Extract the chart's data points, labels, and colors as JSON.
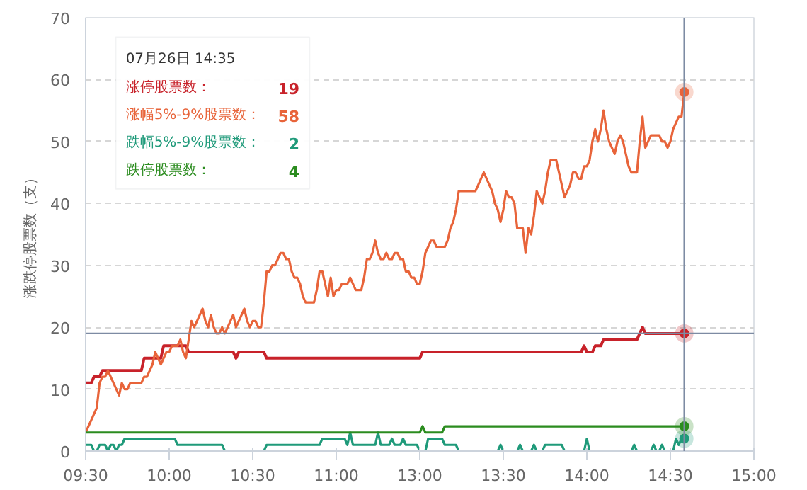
{
  "chart_data": {
    "type": "line",
    "ylabel": "涨跌停股票数（支）",
    "ylim": [
      0,
      70
    ],
    "categories": [
      "09:30",
      null,
      null,
      null,
      null,
      null,
      null,
      null,
      null,
      null,
      null,
      null,
      null,
      null,
      null,
      null,
      null,
      null,
      null,
      null,
      null,
      null,
      null,
      null,
      null,
      null,
      null,
      null,
      null,
      null,
      "10:00",
      null,
      null,
      null,
      null,
      null,
      null,
      null,
      null,
      null,
      null,
      null,
      null,
      null,
      null,
      null,
      null,
      null,
      null,
      null,
      null,
      null,
      null,
      null,
      null,
      null,
      null,
      null,
      null,
      null,
      "10:30",
      null,
      null,
      null,
      null,
      null,
      null,
      null,
      null,
      null,
      null,
      null,
      null,
      null,
      null,
      null,
      null,
      null,
      null,
      null,
      null,
      null,
      null,
      null,
      null,
      null,
      null,
      null,
      null,
      null,
      "11:00",
      null,
      null,
      null,
      null,
      null,
      null,
      null,
      null,
      null,
      null,
      null,
      null,
      null,
      null,
      null,
      null,
      null,
      null,
      null,
      null,
      null,
      null,
      null,
      null,
      null,
      null,
      null,
      null,
      null,
      "13:00",
      null,
      null,
      null,
      null,
      null,
      null,
      null,
      null,
      null,
      null,
      null,
      null,
      null,
      null,
      null,
      null,
      null,
      null,
      null,
      null,
      null,
      null,
      null,
      null,
      null,
      null,
      null,
      null,
      null,
      "13:30",
      null,
      null,
      null,
      null,
      null,
      null,
      null,
      null,
      null,
      null,
      null,
      null,
      null,
      null,
      null,
      null,
      null,
      null,
      null,
      null,
      null,
      null,
      null,
      null,
      null,
      null,
      null,
      null,
      null,
      "14:00",
      null,
      null,
      null,
      null,
      null,
      null,
      null,
      null,
      null,
      null,
      null,
      null,
      null,
      null,
      null,
      null,
      null,
      null,
      null,
      null,
      null,
      null,
      null,
      null,
      null,
      null,
      null,
      null,
      null,
      "14:30",
      null,
      null,
      null,
      null,
      null,
      null,
      null,
      null,
      null,
      null,
      null,
      null,
      null,
      null,
      null,
      null,
      null,
      null,
      null,
      null,
      null,
      null,
      null,
      null,
      null,
      null,
      null,
      null,
      null,
      "15:00"
    ],
    "yticks": [
      0,
      10,
      20,
      30,
      40,
      50,
      60,
      70
    ],
    "grid": "y",
    "legend": "top left",
    "line_style": "solid",
    "annotations": [
      "07月26日 14:35",
      "19",
      "58",
      "2",
      "4"
    ],
    "ref_lines": [
      {
        "axis": "y",
        "value": 19,
        "color": "#7d8ba3"
      }
    ],
    "series": [
      {
        "name": "涨停股票数：",
        "color": "#c8222a",
        "values": [
          11,
          11,
          11,
          12,
          12,
          12,
          13,
          13,
          13,
          13,
          13,
          13,
          13,
          13,
          13,
          13,
          13,
          13,
          13,
          13,
          13,
          15,
          15,
          15,
          15,
          15,
          15,
          15,
          17,
          17,
          17,
          17,
          17,
          17,
          17,
          17,
          17,
          16,
          16,
          16,
          16,
          16,
          16,
          16,
          16,
          16,
          16,
          16,
          16,
          16,
          16,
          16,
          16,
          16,
          15,
          16,
          16,
          16,
          16,
          16,
          16,
          16,
          16,
          16,
          16,
          15,
          15,
          15,
          15,
          15,
          15,
          15,
          15,
          15,
          15,
          15,
          15,
          15,
          15,
          15,
          15,
          15,
          15,
          15,
          15,
          15,
          15,
          15,
          15,
          15,
          15,
          15,
          15,
          15,
          15,
          15,
          15,
          15,
          15,
          15,
          15,
          15,
          15,
          15,
          15,
          15,
          15,
          15,
          15,
          15,
          15,
          15,
          15,
          15,
          15,
          15,
          15,
          15,
          15,
          15,
          15,
          16,
          16,
          16,
          16,
          16,
          16,
          16,
          16,
          16,
          16,
          16,
          16,
          16,
          16,
          16,
          16,
          16,
          16,
          16,
          16,
          16,
          16,
          16,
          16,
          16,
          16,
          16,
          16,
          16,
          16,
          16,
          16,
          16,
          16,
          16,
          16,
          16,
          16,
          16,
          16,
          16,
          16,
          16,
          16,
          16,
          16,
          16,
          16,
          16,
          16,
          16,
          16,
          16,
          16,
          16,
          16,
          16,
          16,
          17,
          16,
          16,
          16,
          17,
          17,
          17,
          18,
          18,
          18,
          18,
          18,
          18,
          18,
          18,
          18,
          18,
          18,
          18,
          18,
          19,
          20,
          19,
          19,
          19,
          19,
          19,
          19,
          19,
          19,
          19,
          19,
          19,
          19,
          19,
          19,
          19,
          null,
          null,
          null,
          null,
          null,
          null,
          null,
          null,
          null,
          null,
          null,
          null,
          null,
          null,
          null,
          null,
          null,
          null,
          null,
          null,
          null,
          null,
          null,
          null,
          null
        ]
      },
      {
        "name": "涨幅5%-9%股票数：",
        "color": "#e8643a",
        "values": [
          3,
          4,
          5,
          6,
          7,
          11,
          12,
          12,
          13,
          12,
          11,
          10,
          9,
          11,
          10,
          10,
          11,
          11,
          11,
          11,
          11,
          12,
          12,
          13,
          14,
          16,
          15,
          14,
          15,
          16,
          16,
          17,
          17,
          17,
          18,
          16,
          15,
          18,
          21,
          20,
          21,
          22,
          23,
          21,
          20,
          22,
          20,
          19,
          19,
          20,
          19,
          20,
          21,
          22,
          20,
          21,
          22,
          23,
          21,
          20,
          21,
          21,
          20,
          20,
          24,
          29,
          29,
          30,
          30,
          31,
          32,
          32,
          31,
          31,
          29,
          28,
          28,
          27,
          25,
          24,
          24,
          24,
          24,
          26,
          29,
          29,
          27,
          25,
          28,
          25,
          26,
          26,
          27,
          27,
          27,
          28,
          27,
          26,
          26,
          26,
          28,
          31,
          31,
          32,
          34,
          32,
          31,
          31,
          32,
          31,
          31,
          32,
          32,
          31,
          31,
          29,
          29,
          28,
          28,
          27,
          27,
          29,
          32,
          33,
          34,
          34,
          33,
          33,
          33,
          33,
          34,
          36,
          37,
          39,
          42,
          42,
          42,
          42,
          42,
          42,
          42,
          43,
          44,
          45,
          44,
          43,
          42,
          40,
          39,
          37,
          39,
          42,
          41,
          41,
          40,
          36,
          36,
          36,
          32,
          36,
          35,
          38,
          42,
          41,
          40,
          42,
          45,
          47,
          47,
          47,
          45,
          43,
          41,
          42,
          43,
          45,
          45,
          44,
          44,
          46,
          46,
          47,
          50,
          52,
          50,
          52,
          55,
          52,
          50,
          49,
          48,
          50,
          51,
          50,
          48,
          46,
          45,
          45,
          45,
          50,
          54,
          49,
          50,
          51,
          51,
          51,
          51,
          50,
          50,
          49,
          50,
          52,
          53,
          54,
          54,
          58,
          null,
          null,
          null,
          null,
          null,
          null,
          null,
          null,
          null,
          null,
          null,
          null,
          null,
          null,
          null,
          null,
          null,
          null,
          null,
          null,
          null,
          null,
          null,
          null,
          null
        ]
      },
      {
        "name": "跌幅5%-9%股票数：",
        "color": "#1f9a7a",
        "values": [
          1,
          1,
          1,
          0,
          0,
          1,
          1,
          1,
          0,
          1,
          1,
          0,
          1,
          1,
          2,
          2,
          2,
          2,
          2,
          2,
          2,
          2,
          2,
          2,
          2,
          2,
          2,
          2,
          2,
          2,
          2,
          2,
          2,
          1,
          1,
          1,
          1,
          1,
          1,
          1,
          1,
          1,
          1,
          1,
          1,
          1,
          1,
          1,
          1,
          1,
          0,
          0,
          0,
          0,
          0,
          0,
          0,
          0,
          0,
          0,
          0,
          0,
          0,
          0,
          0,
          1,
          1,
          1,
          1,
          1,
          1,
          1,
          1,
          1,
          1,
          1,
          1,
          1,
          1,
          1,
          1,
          1,
          1,
          1,
          1,
          2,
          2,
          2,
          2,
          2,
          2,
          2,
          2,
          2,
          1,
          3,
          1,
          1,
          1,
          1,
          1,
          1,
          1,
          1,
          1,
          3,
          1,
          1,
          1,
          1,
          2,
          1,
          1,
          1,
          2,
          1,
          1,
          1,
          1,
          1,
          0,
          0,
          0,
          2,
          2,
          2,
          2,
          2,
          2,
          1,
          1,
          1,
          1,
          1,
          0,
          0,
          0,
          0,
          0,
          0,
          0,
          0,
          0,
          0,
          0,
          0,
          0,
          0,
          0,
          1,
          0,
          0,
          0,
          0,
          0,
          0,
          1,
          0,
          0,
          0,
          0,
          1,
          0,
          0,
          0,
          1,
          1,
          1,
          1,
          1,
          1,
          1,
          0,
          0,
          0,
          0,
          0,
          0,
          0,
          0,
          2,
          0,
          0,
          0,
          0,
          0,
          0,
          0,
          0,
          0,
          0,
          0,
          0,
          0,
          0,
          0,
          0,
          1,
          0,
          0,
          0,
          0,
          0,
          0,
          1,
          0,
          0,
          1,
          0,
          0,
          0,
          0,
          2,
          1,
          2,
          2,
          null,
          null,
          null,
          null,
          null,
          null,
          null,
          null,
          null,
          null,
          null,
          null,
          null,
          null,
          null,
          null,
          null,
          null,
          null,
          null,
          null,
          null,
          null,
          null,
          null
        ]
      },
      {
        "name": "跌停股票数：",
        "color": "#2b8c1f",
        "values": [
          3,
          3,
          3,
          3,
          3,
          3,
          3,
          3,
          3,
          3,
          3,
          3,
          3,
          3,
          3,
          3,
          3,
          3,
          3,
          3,
          3,
          3,
          3,
          3,
          3,
          3,
          3,
          3,
          3,
          3,
          3,
          3,
          3,
          3,
          3,
          3,
          3,
          3,
          3,
          3,
          3,
          3,
          3,
          3,
          3,
          3,
          3,
          3,
          3,
          3,
          3,
          3,
          3,
          3,
          3,
          3,
          3,
          3,
          3,
          3,
          3,
          3,
          3,
          3,
          3,
          3,
          3,
          3,
          3,
          3,
          3,
          3,
          3,
          3,
          3,
          3,
          3,
          3,
          3,
          3,
          3,
          3,
          3,
          3,
          3,
          3,
          3,
          3,
          3,
          3,
          3,
          3,
          3,
          3,
          3,
          3,
          3,
          3,
          3,
          3,
          3,
          3,
          3,
          3,
          3,
          3,
          3,
          3,
          3,
          3,
          3,
          3,
          3,
          3,
          3,
          3,
          3,
          3,
          3,
          3,
          3,
          4,
          3,
          3,
          3,
          3,
          3,
          3,
          3,
          4,
          4,
          4,
          4,
          4,
          4,
          4,
          4,
          4,
          4,
          4,
          4,
          4,
          4,
          4,
          4,
          4,
          4,
          4,
          4,
          4,
          4,
          4,
          4,
          4,
          4,
          4,
          4,
          4,
          4,
          4,
          4,
          4,
          4,
          4,
          4,
          4,
          4,
          4,
          4,
          4,
          4,
          4,
          4,
          4,
          4,
          4,
          4,
          4,
          4,
          4,
          4,
          4,
          4,
          4,
          4,
          4,
          4,
          4,
          4,
          4,
          4,
          4,
          4,
          4,
          4,
          4,
          4,
          4,
          4,
          4,
          4,
          4,
          4,
          4,
          4,
          4,
          4,
          4,
          4,
          4,
          4,
          4,
          4,
          4,
          4,
          4,
          null,
          null,
          null,
          null,
          null,
          null,
          null,
          null,
          null,
          null,
          null,
          null,
          null,
          null,
          null,
          null,
          null,
          null,
          null,
          null,
          null,
          null,
          null,
          null,
          null
        ]
      }
    ]
  }
}
